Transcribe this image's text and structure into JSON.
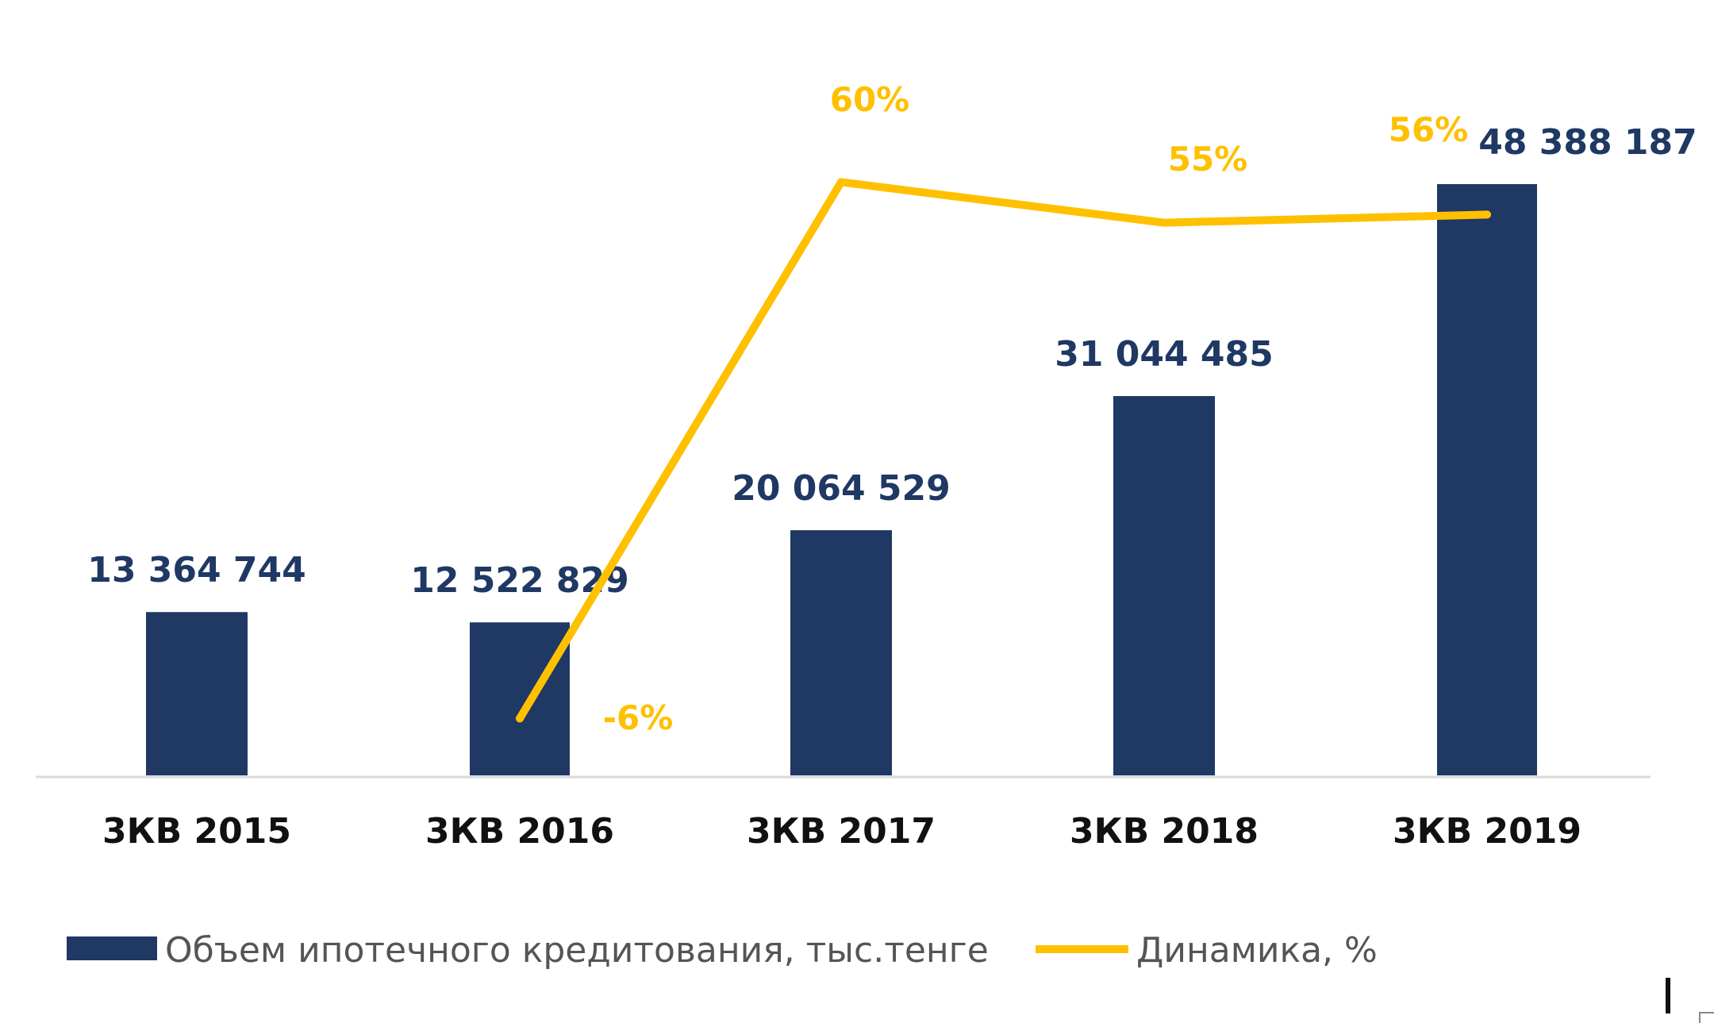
{
  "chart_data": {
    "type": "bar",
    "categories": [
      "3КВ 2015",
      "3КВ 2016",
      "3КВ 2017",
      "3КВ 2018",
      "3КВ 2019"
    ],
    "series": [
      {
        "name": "Объем ипотечного кредитования, тыс.тенге",
        "kind": "bar",
        "color": "#1f3864",
        "values": [
          13364744,
          12522829,
          20064529,
          31044485,
          48388187
        ],
        "labels": [
          "13 364 744",
          "12 522 829",
          "20 064 529",
          "31 044 485",
          "48 388 187"
        ]
      },
      {
        "name": "Динамика, %",
        "kind": "line",
        "color": "#ffc000",
        "values": [
          null,
          -6,
          60,
          55,
          56
        ],
        "labels": [
          "",
          "-6%",
          "60%",
          "55%",
          "56%"
        ]
      }
    ],
    "ylim": [
      0,
      48388187
    ],
    "y2lim": [
      -9,
      66
    ],
    "grid": false,
    "legend": "bottom-left"
  }
}
